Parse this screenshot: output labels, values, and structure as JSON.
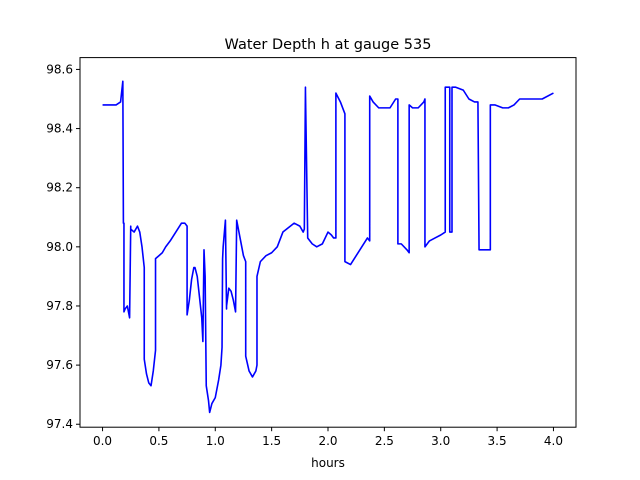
{
  "chart_data": {
    "type": "line",
    "title": "Water Depth h at gauge 535",
    "xlabel": "hours",
    "ylabel": "",
    "xlim": [
      -0.2,
      4.2
    ],
    "ylim": [
      97.39,
      98.64
    ],
    "x_ticks": [
      0.0,
      0.5,
      1.0,
      1.5,
      2.0,
      2.5,
      3.0,
      3.5,
      4.0
    ],
    "x_tick_labels": [
      "0.0",
      "0.5",
      "1.0",
      "1.5",
      "2.0",
      "2.5",
      "3.0",
      "3.5",
      "4.0"
    ],
    "y_ticks": [
      97.4,
      97.6,
      97.8,
      98.0,
      98.2,
      98.4,
      98.6
    ],
    "y_tick_labels": [
      "97.4",
      "97.6",
      "97.8",
      "98.0",
      "98.2",
      "98.4",
      "98.6"
    ],
    "grid": false,
    "legend": "none",
    "series": [
      {
        "color": "#0000ff",
        "x": [
          0.0,
          0.12,
          0.16,
          0.18,
          0.185,
          0.19,
          0.19,
          0.2,
          0.22,
          0.24,
          0.25,
          0.25,
          0.28,
          0.31,
          0.33,
          0.35,
          0.37,
          0.37,
          0.39,
          0.41,
          0.43,
          0.45,
          0.47,
          0.47,
          0.5,
          0.53,
          0.56,
          0.6,
          0.65,
          0.7,
          0.73,
          0.75,
          0.75,
          0.77,
          0.79,
          0.81,
          0.82,
          0.84,
          0.86,
          0.88,
          0.89,
          0.9,
          0.91,
          0.92,
          0.94,
          0.95,
          0.97,
          1.0,
          1.03,
          1.05,
          1.06,
          1.065,
          1.07,
          1.09,
          1.1,
          1.1,
          1.12,
          1.14,
          1.16,
          1.18,
          1.19,
          1.19,
          1.22,
          1.25,
          1.27,
          1.27,
          1.3,
          1.33,
          1.36,
          1.37,
          1.37,
          1.4,
          1.45,
          1.5,
          1.55,
          1.6,
          1.7,
          1.75,
          1.78,
          1.79,
          1.8,
          1.8,
          1.82,
          1.86,
          1.9,
          1.95,
          2.0,
          2.03,
          2.05,
          2.07,
          2.07,
          2.11,
          2.15,
          2.15,
          2.2,
          2.25,
          2.3,
          2.35,
          2.37,
          2.37,
          2.4,
          2.45,
          2.5,
          2.55,
          2.6,
          2.62,
          2.62,
          2.65,
          2.7,
          2.72,
          2.72,
          2.75,
          2.8,
          2.85,
          2.86,
          2.86,
          2.9,
          2.95,
          3.0,
          3.04,
          3.04,
          3.06,
          3.08,
          3.08,
          3.1,
          3.1,
          3.13,
          3.2,
          3.25,
          3.3,
          3.33,
          3.34,
          3.36,
          3.4,
          3.44,
          3.44,
          3.48,
          3.55,
          3.6,
          3.65,
          3.7,
          3.8,
          3.9,
          4.0
        ],
        "values": [
          98.48,
          98.48,
          98.49,
          98.56,
          98.08,
          98.08,
          97.78,
          97.79,
          97.8,
          97.76,
          98.07,
          98.06,
          98.05,
          98.07,
          98.05,
          98.0,
          97.93,
          97.62,
          97.57,
          97.54,
          97.53,
          97.58,
          97.65,
          97.96,
          97.97,
          97.98,
          98.0,
          98.02,
          98.05,
          98.08,
          98.08,
          98.07,
          97.77,
          97.82,
          97.89,
          97.93,
          97.93,
          97.9,
          97.83,
          97.76,
          97.68,
          97.99,
          97.9,
          97.53,
          97.48,
          97.44,
          97.47,
          97.49,
          97.55,
          97.6,
          97.66,
          97.96,
          98.0,
          98.09,
          97.79,
          97.8,
          97.86,
          97.85,
          97.82,
          97.78,
          98.09,
          98.09,
          98.03,
          97.97,
          97.95,
          97.63,
          97.58,
          97.56,
          97.58,
          97.6,
          97.9,
          97.95,
          97.97,
          97.98,
          98.0,
          98.05,
          98.08,
          98.07,
          98.05,
          98.06,
          98.54,
          98.53,
          98.03,
          98.01,
          98.0,
          98.01,
          98.05,
          98.04,
          98.03,
          98.03,
          98.52,
          98.49,
          98.45,
          97.95,
          97.94,
          97.97,
          98.0,
          98.03,
          98.02,
          98.51,
          98.49,
          98.47,
          98.47,
          98.47,
          98.5,
          98.5,
          98.01,
          98.01,
          97.99,
          97.98,
          98.48,
          98.47,
          98.47,
          98.49,
          98.5,
          98.0,
          98.02,
          98.03,
          98.04,
          98.05,
          98.54,
          98.54,
          98.54,
          98.05,
          98.05,
          98.54,
          98.54,
          98.53,
          98.5,
          98.49,
          98.49,
          97.99,
          97.99,
          97.99,
          97.99,
          98.48,
          98.48,
          98.47,
          98.47,
          98.48,
          98.5,
          98.5,
          98.5,
          98.52
        ]
      }
    ]
  }
}
